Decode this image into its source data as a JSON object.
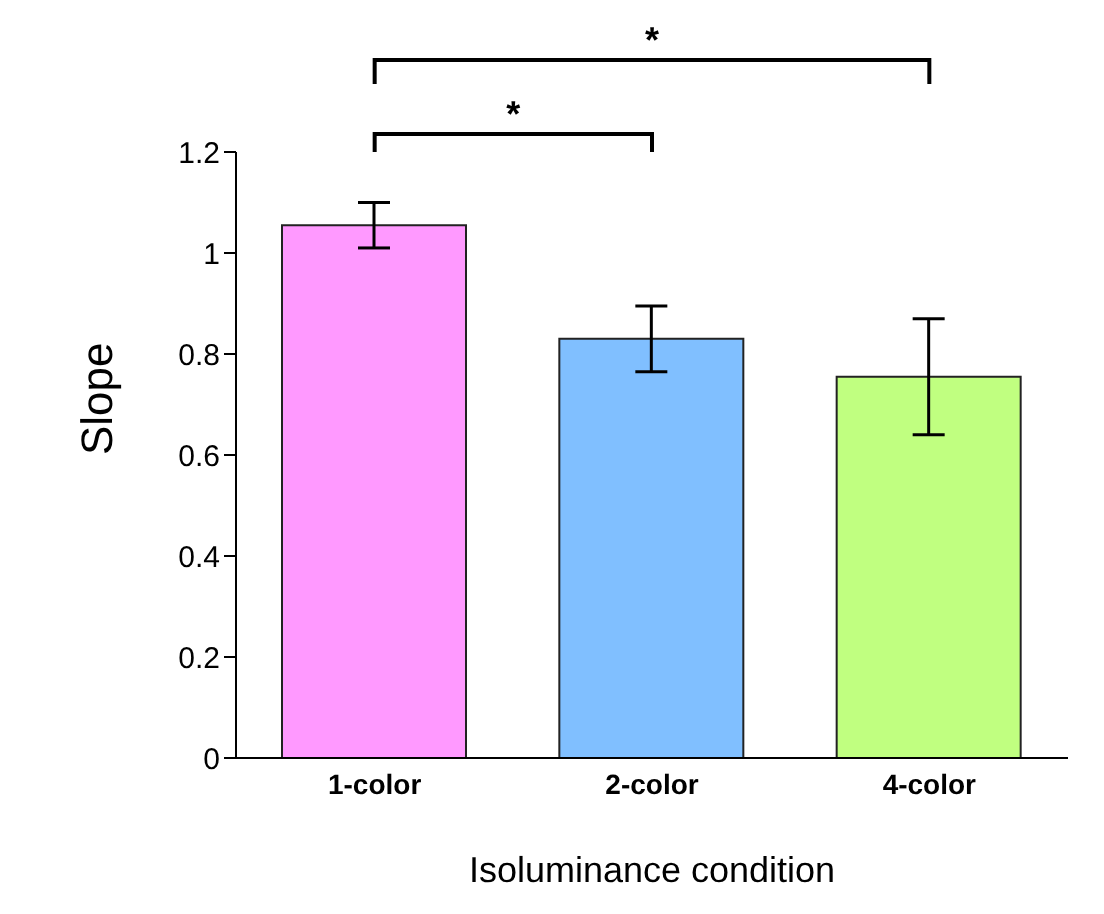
{
  "chart_data": {
    "type": "bar",
    "xlabel": "Isoluminance condition",
    "ylabel": "Slope",
    "categories": [
      "1-color",
      "2-color",
      "4-color"
    ],
    "values": [
      1.055,
      0.83,
      0.755
    ],
    "colors": [
      "#ff99ff",
      "#80bfff",
      "#c0ff80"
    ],
    "errors": [
      0.045,
      0.065,
      0.115
    ],
    "ylim": [
      0,
      1.2
    ],
    "yticks": [
      0,
      0.2,
      0.4,
      0.6,
      0.8,
      1,
      1.2
    ],
    "grid": false,
    "annotations": [
      "*",
      "*"
    ]
  }
}
